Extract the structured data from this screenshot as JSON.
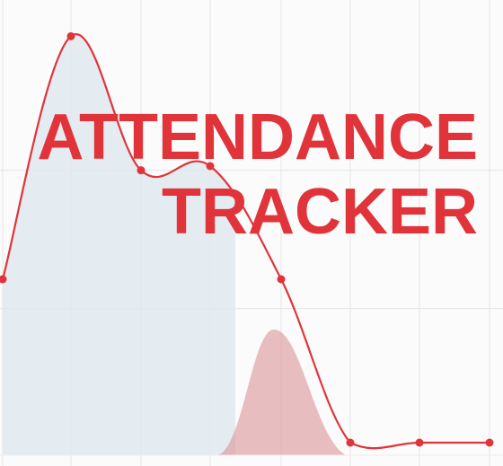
{
  "title": {
    "line1": "ATTENDANCE",
    "line2": "TRACKER"
  },
  "colors": {
    "accent": "#e0343a",
    "area_fill": "#dfe7ee",
    "secondary_fill": "#d98a90",
    "grid": "#e6e6e6"
  },
  "chart_data": {
    "type": "area",
    "series": [
      {
        "values": [
          0.42,
          1.0,
          0.68,
          0.69,
          0.42,
          0.03,
          0.03,
          0.03
        ]
      },
      {
        "values": [
          0.0,
          0.0,
          0.0,
          0.0,
          0.3,
          0.0,
          0.0,
          0.0
        ]
      }
    ],
    "grid": true,
    "ylim": [
      0,
      1.05
    ]
  }
}
